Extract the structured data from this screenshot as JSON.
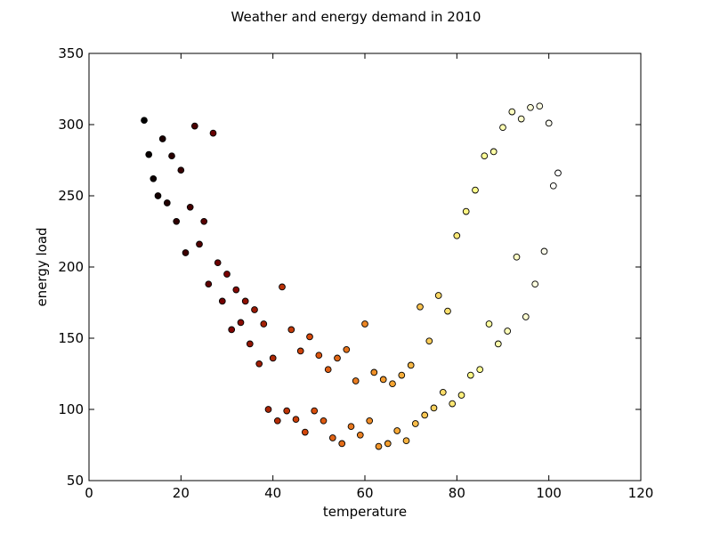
{
  "chart_data": {
    "type": "scatter",
    "title": "Weather and energy demand in 2010",
    "xlabel": "temperature",
    "ylabel": "energy load",
    "xlim": [
      0,
      120
    ],
    "ylim": [
      50,
      350
    ],
    "xticks": [
      0,
      20,
      40,
      60,
      80,
      100,
      120
    ],
    "yticks": [
      50,
      100,
      150,
      200,
      250,
      300,
      350
    ],
    "grid": false,
    "legend": "none",
    "colormap": "hot (colored by temperature)",
    "colormap_stops": [
      "#000000",
      "#7a0000",
      "#d84a0a",
      "#f6a431",
      "#ffff8c",
      "#ffffff"
    ],
    "point_edge_color": "#000000",
    "series": [
      {
        "x": [
          12,
          13,
          14,
          15,
          16,
          17,
          18,
          19,
          20,
          21,
          22,
          23,
          24,
          25,
          26,
          27,
          28,
          29,
          30,
          31,
          32,
          33,
          34,
          35,
          36,
          37,
          38,
          39,
          40,
          41,
          42,
          43,
          44,
          45,
          46,
          47,
          48,
          49,
          50,
          51,
          52,
          53,
          54,
          55,
          56,
          57,
          58,
          59,
          60,
          61,
          62,
          63,
          64,
          65,
          66,
          67,
          68,
          69,
          70,
          71,
          72,
          73,
          74,
          75,
          76,
          77,
          78,
          79,
          80,
          81,
          82,
          83,
          84,
          85,
          86,
          87,
          88,
          89,
          90,
          91,
          92,
          93,
          94,
          95,
          96,
          97,
          98,
          99,
          100,
          101,
          102
        ],
        "y": [
          303,
          279,
          262,
          250,
          290,
          245,
          278,
          232,
          268,
          210,
          242,
          299,
          216,
          232,
          188,
          294,
          203,
          176,
          195,
          156,
          184,
          161,
          176,
          146,
          170,
          132,
          160,
          100,
          136,
          92,
          186,
          99,
          156,
          93,
          141,
          84,
          151,
          99,
          138,
          92,
          128,
          80,
          136,
          76,
          142,
          88,
          120,
          82,
          160,
          92,
          126,
          74,
          121,
          76,
          118,
          85,
          124,
          78,
          131,
          90,
          172,
          96,
          148,
          101,
          180,
          112,
          169,
          104,
          222,
          110,
          239,
          124,
          254,
          128,
          278,
          160,
          281,
          146,
          298,
          155,
          309,
          207,
          304,
          165,
          312,
          188,
          313,
          211,
          301,
          257,
          266
        ]
      }
    ]
  }
}
